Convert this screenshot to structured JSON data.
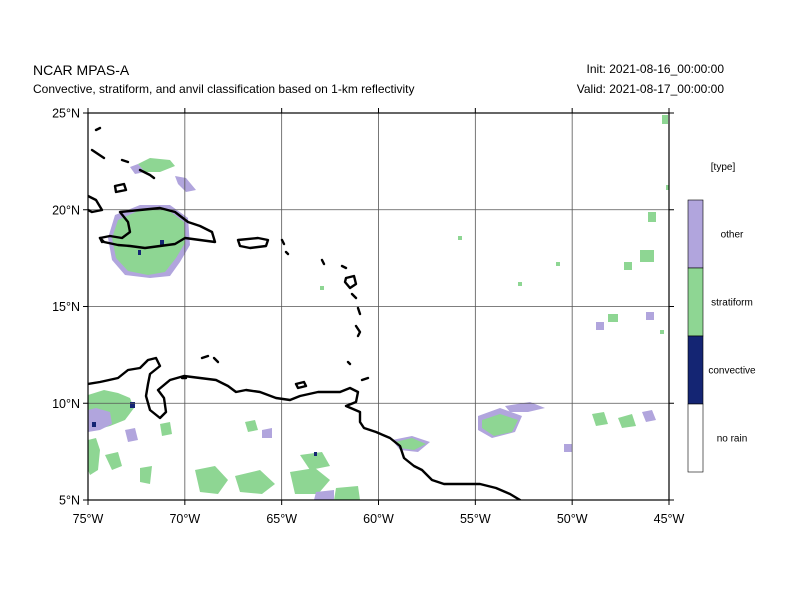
{
  "header": {
    "title": "NCAR MPAS-A",
    "subtitle": "Convective, stratiform, and anvil classification based on 1-km reflectivity",
    "init": "Init: 2021-08-16_00:00:00",
    "valid": "Valid: 2021-08-17_00:00:00"
  },
  "map": {
    "lon_range": [
      -75,
      -45
    ],
    "lat_range": [
      5,
      25
    ],
    "lon_ticks": [
      "75°W",
      "70°W",
      "65°W",
      "60°W",
      "55°W",
      "50°W",
      "45°W"
    ],
    "lat_ticks": [
      "25°N",
      "20°N",
      "15°N",
      "10°N",
      "5°N"
    ],
    "grid": true,
    "coastline_color": "#000000",
    "gridline_color": "#555555"
  },
  "legend": {
    "title": "[type]",
    "categories": [
      {
        "label": "other",
        "color": "#b1a5dd"
      },
      {
        "label": "stratiform",
        "color": "#8ed693"
      },
      {
        "label": "convective",
        "color": "#142573"
      },
      {
        "label": "no rain",
        "color": "#ffffff"
      }
    ]
  }
}
